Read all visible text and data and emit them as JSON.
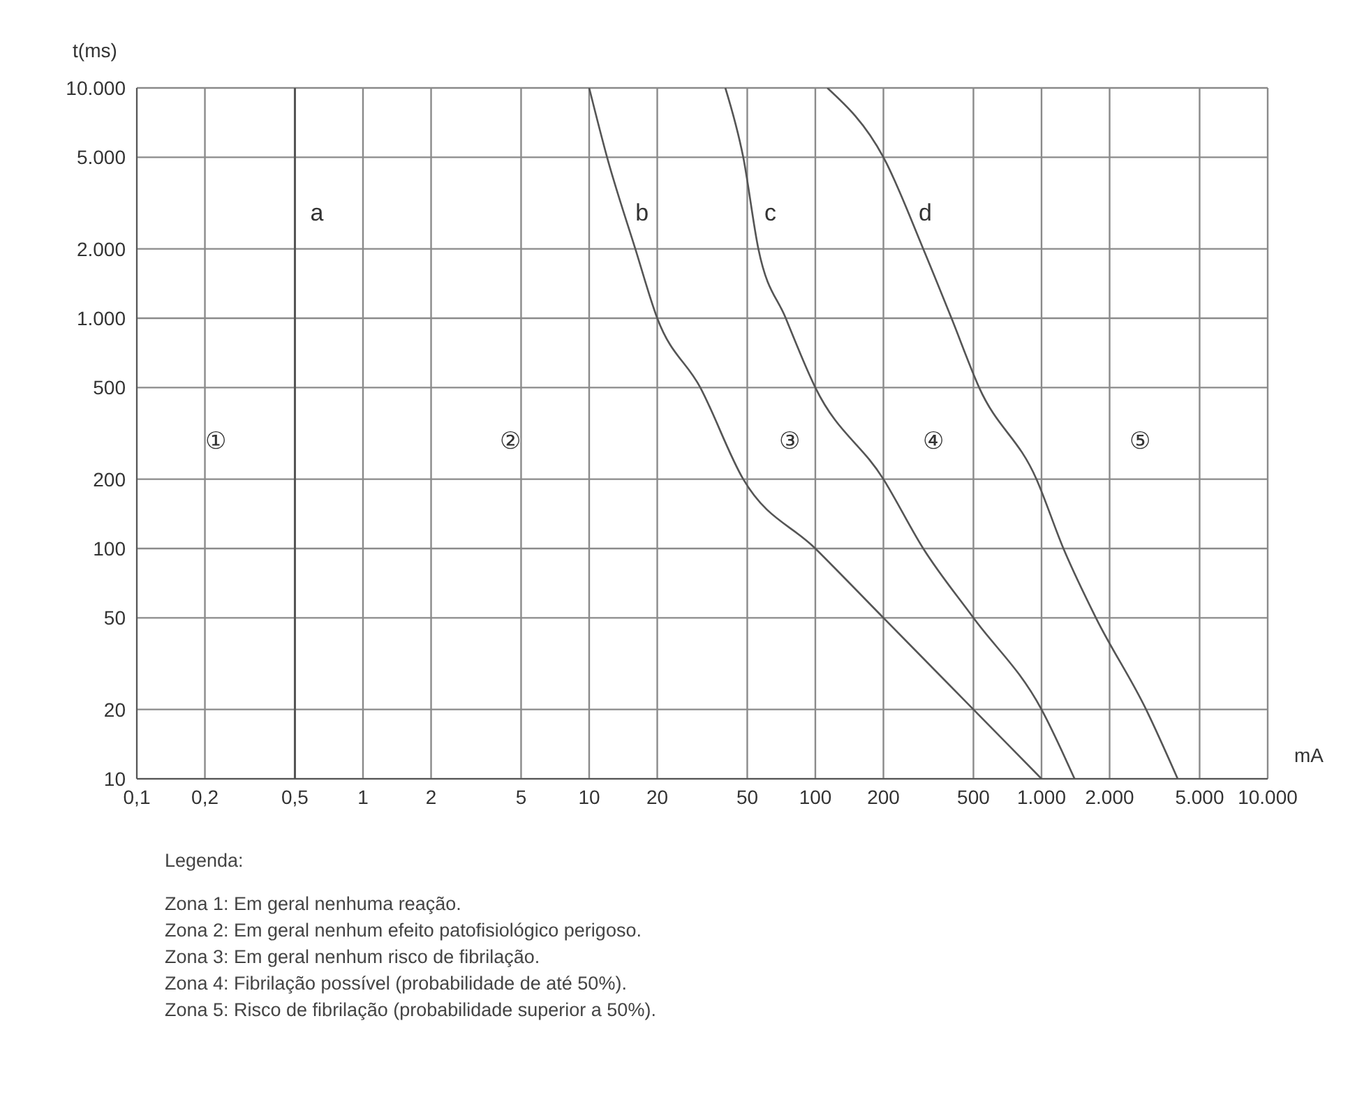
{
  "chart_data": {
    "type": "line",
    "xlabel": "mA",
    "ylabel": "t(ms)",
    "log": "xy",
    "grid": true,
    "line_style": "solid",
    "marker": "none",
    "xlim": [
      0.1,
      10000
    ],
    "ylim": [
      10,
      10000
    ],
    "xticks": [
      {
        "value": 0.1,
        "label": "0,1"
      },
      {
        "value": 0.2,
        "label": "0,2"
      },
      {
        "value": 0.5,
        "label": "0,5"
      },
      1,
      2,
      5,
      10,
      20,
      50,
      100,
      200,
      500,
      {
        "value": 1000,
        "label": "1.000"
      },
      {
        "value": 2000,
        "label": "2.000"
      },
      {
        "value": 5000,
        "label": "5.000"
      },
      {
        "value": 10000,
        "label": "10.000"
      }
    ],
    "yticks": [
      10,
      20,
      50,
      100,
      200,
      500,
      {
        "value": 1000,
        "label": "1.000"
      },
      {
        "value": 2000,
        "label": "2.000"
      },
      {
        "value": 5000,
        "label": "5.000"
      },
      {
        "value": 10000,
        "label": "10.000"
      }
    ],
    "series": [
      {
        "name": "b",
        "color": "#555555",
        "x": [
          10,
          12,
          16,
          20,
          31,
          48,
          100,
          200,
          500,
          1000
        ],
        "values": [
          10000,
          5000,
          2000,
          1000,
          500,
          200,
          100,
          50,
          20,
          10
        ]
      },
      {
        "name": "c",
        "color": "#555555",
        "x": [
          40,
          48,
          56,
          74,
          100,
          200,
          300,
          500,
          1000,
          1400
        ],
        "values": [
          10000,
          5000,
          2000,
          1000,
          500,
          200,
          100,
          50,
          20,
          10
        ]
      },
      {
        "name": "d",
        "color": "#555555",
        "x": [
          113,
          200,
          300,
          400,
          530,
          950,
          1250,
          1740,
          2900,
          4000
        ],
        "values": [
          10000,
          5000,
          2000,
          1000,
          500,
          200,
          100,
          50,
          20,
          10
        ]
      }
    ],
    "ref_lines": [
      {
        "axis": "x",
        "value": 0.5,
        "label": "a",
        "color": "#555555"
      }
    ],
    "annotations": [
      "①",
      "②",
      "③",
      "④",
      "⑤",
      "Legenda:",
      "Zona 1: Em geral nenhuma reação.",
      "Zona 2: Em geral nenhum efeito patofisiológico perigoso.",
      "Zona 3: Em geral nenhum risco de fibrilação.",
      "Zona 4: Fibrilação possível (probabilidade de até 50%).",
      "Zona 5: Risco de fibrilação (probabilidade superior a 50%)."
    ]
  }
}
